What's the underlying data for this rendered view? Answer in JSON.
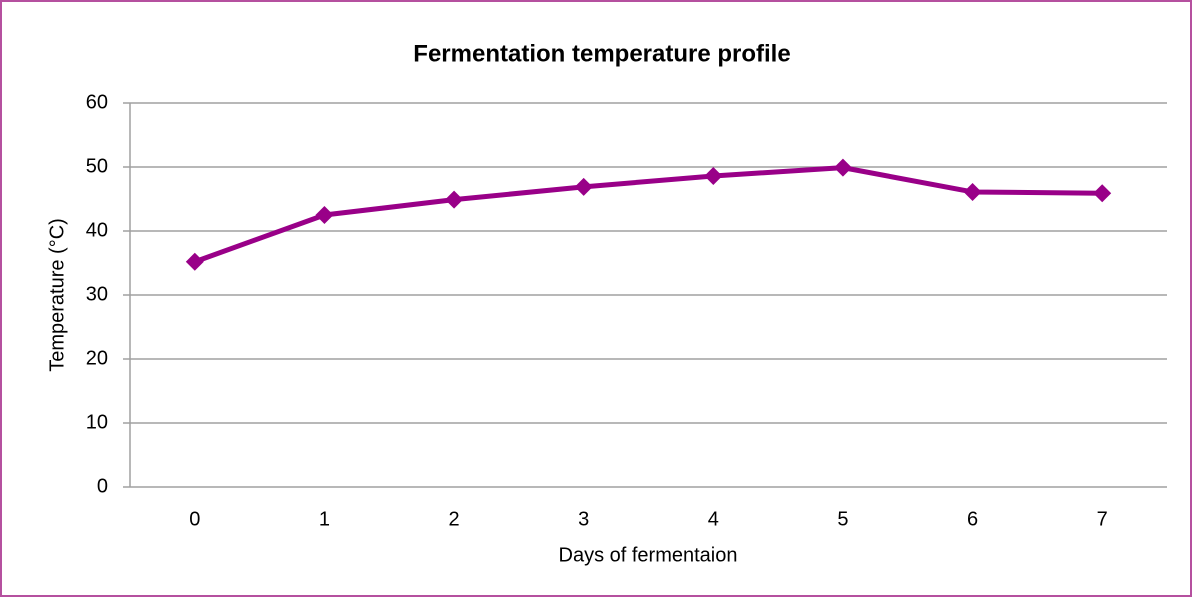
{
  "chart_data": {
    "type": "line",
    "title": "Fermentation temperature profile",
    "x_label": "Days of fermentaion",
    "y_label": "Temperature (°C)",
    "categories": [
      "0",
      "1",
      "2",
      "3",
      "4",
      "5",
      "6",
      "7"
    ],
    "series": [
      {
        "name": "Temperature",
        "color": "#990088",
        "values": [
          35.2,
          42.5,
          44.9,
          46.9,
          48.6,
          49.9,
          46.1,
          45.9
        ]
      }
    ],
    "ylim": [
      0,
      60
    ],
    "yticks": [
      0,
      10,
      20,
      30,
      40,
      50,
      60
    ],
    "grid": true
  }
}
